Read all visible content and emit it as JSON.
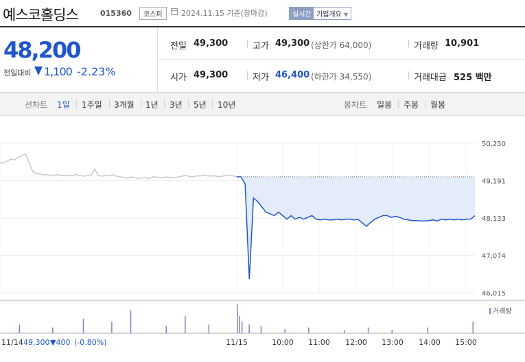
{
  "header": {
    "company_name": "예스코홀딩스",
    "stock_code": "015360",
    "market_badge": "코스피",
    "date_text": "2024.11.15 기준(장마감)",
    "realtime_badge": "실시간",
    "company_info_label": "기업개요"
  },
  "summary": {
    "price": "48,200",
    "change_label": "전일대비",
    "change_value": "1,100",
    "change_pct": "-2.23%",
    "colors": {
      "down": "#1f56c8"
    },
    "prev_close": {
      "label": "전일",
      "value": "49,300"
    },
    "high": {
      "label": "고가",
      "value": "49,300",
      "sub": "(상한가 64,000)"
    },
    "volume": {
      "label": "거래량",
      "value": "10,901"
    },
    "open": {
      "label": "시가",
      "value": "49,300"
    },
    "low": {
      "label": "저가",
      "value": "46,400",
      "sub": "(하한가 34,550)"
    },
    "amount": {
      "label": "거래대금",
      "value": "525 백만"
    }
  },
  "tabs": {
    "line_label": "선차트",
    "periods": [
      "1일",
      "1주일",
      "3개월",
      "1년",
      "3년",
      "5년",
      "10년"
    ],
    "selected_period": "1일",
    "candle_label": "봉차트",
    "candles": [
      "일봉",
      "주봉",
      "월봉"
    ]
  },
  "chart_data": {
    "type": "line",
    "title": "",
    "xlabel": "",
    "ylabel": "",
    "ylim": [
      46015,
      50250
    ],
    "y_ticks": [
      "50,250",
      "49,191",
      "48,133",
      "47,074",
      "46,015"
    ],
    "y_tick_values": [
      50250,
      49191,
      48133,
      47074,
      46015
    ],
    "x_ticks": [
      "11/14",
      "11/15",
      "10:00",
      "11:00",
      "12:00",
      "13:00",
      "14:00",
      "15:00"
    ],
    "reference_price": 49300,
    "prev_day_series": {
      "name": "11/14",
      "values": [
        49690,
        49700,
        49750,
        49800,
        49780,
        49850,
        49900,
        49950,
        49700,
        49450,
        49400,
        49380,
        49350,
        49360,
        49340,
        49350,
        49360,
        49330,
        49340,
        49330,
        49340,
        49360,
        49340,
        49320,
        49330,
        49340,
        49520,
        49330,
        49320,
        49340,
        49330,
        49360,
        49320,
        49300,
        49280,
        49260,
        49300,
        49270,
        49250,
        49270,
        49280,
        49250,
        49300,
        49290,
        49270,
        49280,
        49300,
        49270,
        49280,
        49300,
        49320,
        49340,
        49310,
        49300,
        49330,
        49320,
        49350,
        49330,
        49320,
        49330,
        49300,
        49320,
        49330,
        49340,
        49330,
        49300
      ]
    },
    "today_series": {
      "name": "11/15",
      "values": [
        49300,
        49300,
        49100,
        46400,
        48700,
        48600,
        48450,
        48300,
        48250,
        48200,
        48300,
        48200,
        48100,
        48200,
        48100,
        48150,
        48100,
        48150,
        48200,
        48100,
        48080,
        48100,
        48080,
        48080,
        48100,
        48080,
        48100,
        48100,
        48080,
        48100,
        48000,
        47900,
        48000,
        48100,
        48150,
        48200,
        48200,
        48150,
        48180,
        48150,
        48100,
        48080,
        48060,
        48060,
        48050,
        48050,
        48060,
        48080,
        48050,
        48100,
        48080,
        48100,
        48080,
        48100,
        48080,
        48100,
        48100,
        48200
      ]
    },
    "prev_label": {
      "date": "11/14",
      "price": "49,300",
      "change": "▼400",
      "pct": "(-0.80%)"
    },
    "volume_label": "거래량",
    "volume_bars": [
      {
        "x": 0.08,
        "v": 0.3
      },
      {
        "x": 0.22,
        "v": 0.2
      },
      {
        "x": 0.35,
        "v": 0.5
      },
      {
        "x": 0.47,
        "v": 0.4
      },
      {
        "x": 0.55,
        "v": 0.8
      },
      {
        "x": 0.7,
        "v": 0.25
      },
      {
        "x": 0.78,
        "v": 0.6
      },
      {
        "x": 0.88,
        "v": 0.3
      },
      {
        "x": 1.0,
        "v": 1.0
      },
      {
        "x": 1.01,
        "v": 0.6
      },
      {
        "x": 1.02,
        "v": 0.4
      },
      {
        "x": 1.05,
        "v": 0.3
      },
      {
        "x": 1.1,
        "v": 0.25
      },
      {
        "x": 1.2,
        "v": 0.15
      },
      {
        "x": 1.3,
        "v": 0.2
      },
      {
        "x": 1.45,
        "v": 0.1
      },
      {
        "x": 1.55,
        "v": 0.2
      },
      {
        "x": 1.65,
        "v": 0.12
      },
      {
        "x": 1.8,
        "v": 0.2
      },
      {
        "x": 1.99,
        "v": 0.4
      }
    ],
    "colors": {
      "line": "#1f56c8",
      "fill": "#e3ecf8",
      "prev_line": "#c7c7c7",
      "volume": "#8b79c9"
    }
  }
}
